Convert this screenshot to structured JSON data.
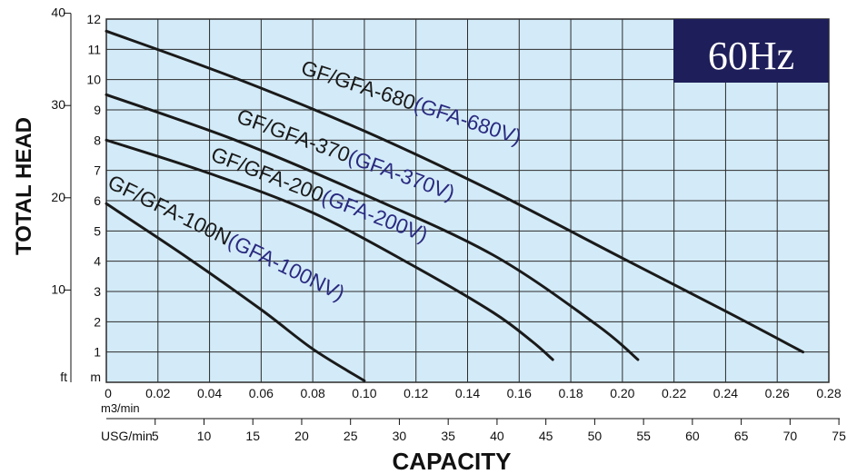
{
  "chart_data": {
    "type": "line",
    "badge": "60Hz",
    "xlabel": "CAPACITY",
    "ylabel": "TOTAL HEAD",
    "x_unit_primary": "m3/min",
    "x_unit_secondary": "USG/min",
    "y_unit_primary": "m",
    "y_unit_secondary": "ft",
    "xlim": [
      0,
      0.28
    ],
    "ylim": [
      0,
      12
    ],
    "x_ticks": [
      "0",
      "0.02",
      "0.04",
      "0.06",
      "0.08",
      "0.10",
      "0.12",
      "0.14",
      "0.16",
      "0.18",
      "0.20",
      "0.22",
      "0.24",
      "0.26",
      "0.28"
    ],
    "y_ticks": [
      "1",
      "2",
      "3",
      "4",
      "5",
      "6",
      "7",
      "8",
      "9",
      "10",
      "11",
      "12"
    ],
    "usg_ticks": [
      "5",
      "10",
      "15",
      "20",
      "25",
      "30",
      "35",
      "40",
      "45",
      "50",
      "55",
      "60",
      "65",
      "70",
      "75"
    ],
    "usg_per_m3min": 264.17,
    "ft_ticks": [
      "10",
      "20",
      "30",
      "40"
    ],
    "m_per_ft": 0.3048,
    "grid": true,
    "colors": {
      "background": "#d3ebf8",
      "grid": "#2b2b2b",
      "curve": "#1a1a1a",
      "label_main": "#1a1a1a",
      "label_variant": "#2a2a80",
      "badge_bg": "#1e1e5a",
      "badge_text": "#ffffff"
    },
    "series": [
      {
        "label_main": "GF/GFA-680",
        "label_variant": "(GFA-680V)",
        "x": [
          0,
          0.05,
          0.1,
          0.15,
          0.2,
          0.24,
          0.27
        ],
        "y": [
          11.6,
          10.05,
          8.3,
          6.3,
          4.1,
          2.35,
          1.0
        ]
      },
      {
        "label_main": "GF/GFA-370",
        "label_variant": "(GFA-370V)",
        "x": [
          0,
          0.05,
          0.1,
          0.15,
          0.19,
          0.206
        ],
        "y": [
          9.5,
          8.0,
          6.2,
          4.2,
          1.9,
          0.75
        ]
      },
      {
        "label_main": "GF/GFA-200",
        "label_variant": "(GFA-200V)",
        "x": [
          0,
          0.04,
          0.08,
          0.12,
          0.15,
          0.165,
          0.173
        ],
        "y": [
          8.0,
          6.9,
          5.6,
          3.8,
          2.3,
          1.35,
          0.75
        ]
      },
      {
        "label_main": "GF/GFA-100N",
        "label_variant": "(GFA-100NV)",
        "x": [
          0,
          0.03,
          0.06,
          0.08,
          0.1
        ],
        "y": [
          5.9,
          4.2,
          2.4,
          1.1,
          0.05
        ]
      }
    ]
  }
}
